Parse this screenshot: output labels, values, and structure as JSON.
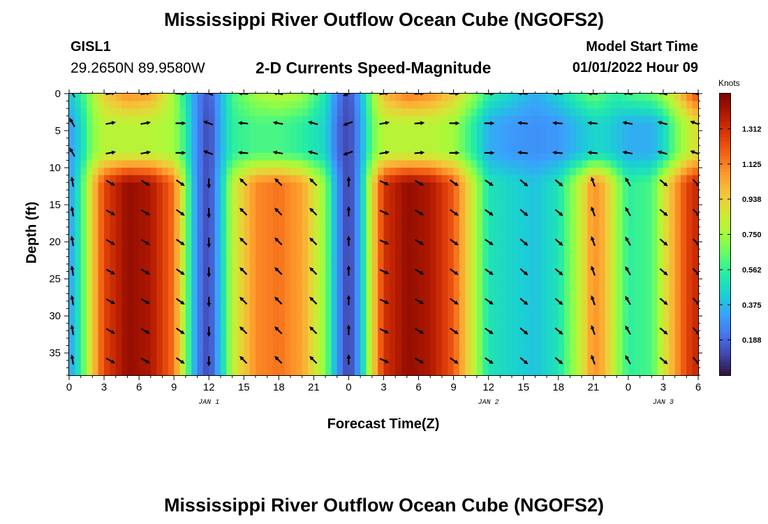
{
  "header": {
    "title": "Mississippi River Outflow Ocean Cube (NGOFS2)",
    "station": "GISL1",
    "coordinates": "29.2650N  89.9580W",
    "subtitle": "2-D Currents Speed-Magnitude",
    "model_start_label": "Model Start Time",
    "model_start_value": "01/01/2022 Hour 09"
  },
  "footer": {
    "title": "Mississippi River Outflow Ocean Cube (NGOFS2)"
  },
  "chart_data": {
    "type": "heatmap",
    "xlabel": "Forecast Time(Z)",
    "ylabel": "Depth (ft)",
    "x_range": [
      0,
      54
    ],
    "y_range": [
      0,
      38
    ],
    "y_inverted": true,
    "x_ticks": [
      0,
      3,
      6,
      9,
      12,
      15,
      18,
      21,
      24,
      27,
      30,
      33,
      36,
      39,
      42,
      45,
      48,
      51,
      54
    ],
    "x_tick_labels": [
      "0",
      "3",
      "6",
      "9",
      "12",
      "15",
      "18",
      "21",
      "0",
      "3",
      "6",
      "9",
      "12",
      "15",
      "18",
      "21",
      "0",
      "3",
      "6"
    ],
    "y_ticks": [
      0,
      5,
      10,
      15,
      20,
      25,
      30,
      35
    ],
    "y_tick_labels": [
      "0",
      "5",
      "10",
      "15",
      "20",
      "25",
      "30",
      "35"
    ],
    "day_labels": [
      {
        "x": 12,
        "label": "JAN 1"
      },
      {
        "x": 36,
        "label": "JAN 2"
      },
      {
        "x": 51,
        "label": "JAN 3"
      }
    ],
    "colorbar": {
      "units": "Knots",
      "min": 0,
      "max": 1.5,
      "ticks": [
        0.188,
        0.375,
        0.562,
        0.75,
        0.938,
        1.125,
        1.312
      ],
      "tick_labels": [
        "0.188",
        "0.375",
        "0.562",
        "0.750",
        "0.938",
        "1.125",
        "1.312"
      ],
      "colormap": [
        "#30123b",
        "#4145ab",
        "#4675ed",
        "#39a2fc",
        "#1bcfd4",
        "#24eca6",
        "#61fc6c",
        "#a4fc3b",
        "#d1e834",
        "#f3c63a",
        "#fe9b2d",
        "#f36315",
        "#d93806",
        "#b11901",
        "#7a0403"
      ]
    },
    "speed_by_time": [
      {
        "t": 0,
        "near_surface": 0.4,
        "surface_layer": 0.3,
        "deep": 0.3
      },
      {
        "t": 1,
        "near_surface": 0.55,
        "surface_layer": 0.45,
        "deep": 0.55
      },
      {
        "t": 2,
        "near_surface": 0.75,
        "surface_layer": 0.7,
        "deep": 0.95
      },
      {
        "t": 3,
        "near_surface": 0.95,
        "surface_layer": 0.8,
        "deep": 1.25
      },
      {
        "t": 5,
        "near_surface": 1.1,
        "surface_layer": 0.8,
        "deep": 1.45
      },
      {
        "t": 7,
        "near_surface": 1.05,
        "surface_layer": 0.8,
        "deep": 1.4
      },
      {
        "t": 9,
        "near_surface": 0.75,
        "surface_layer": 0.75,
        "deep": 1.15
      },
      {
        "t": 10,
        "near_surface": 0.5,
        "surface_layer": 0.55,
        "deep": 0.7
      },
      {
        "t": 11,
        "near_surface": 0.25,
        "surface_layer": 0.25,
        "deep": 0.25
      },
      {
        "t": 12,
        "near_surface": 0.15,
        "surface_layer": 0.1,
        "deep": 0.1
      },
      {
        "t": 13,
        "near_surface": 0.35,
        "surface_layer": 0.35,
        "deep": 0.4
      },
      {
        "t": 14,
        "near_surface": 0.6,
        "surface_layer": 0.55,
        "deep": 0.8
      },
      {
        "t": 16,
        "near_surface": 0.75,
        "surface_layer": 0.6,
        "deep": 1.1
      },
      {
        "t": 18,
        "near_surface": 0.8,
        "surface_layer": 0.6,
        "deep": 1.15
      },
      {
        "t": 20,
        "near_surface": 0.75,
        "surface_layer": 0.55,
        "deep": 1.05
      },
      {
        "t": 22,
        "near_surface": 0.5,
        "surface_layer": 0.45,
        "deep": 0.7
      },
      {
        "t": 23,
        "near_surface": 0.25,
        "surface_layer": 0.2,
        "deep": 0.3
      },
      {
        "t": 24,
        "near_surface": 0.12,
        "surface_layer": 0.1,
        "deep": 0.08
      },
      {
        "t": 25,
        "near_surface": 0.35,
        "surface_layer": 0.3,
        "deep": 0.35
      },
      {
        "t": 26,
        "near_surface": 0.7,
        "surface_layer": 0.65,
        "deep": 0.9
      },
      {
        "t": 27,
        "near_surface": 1.0,
        "surface_layer": 0.8,
        "deep": 1.3
      },
      {
        "t": 29,
        "near_surface": 1.15,
        "surface_layer": 0.8,
        "deep": 1.45
      },
      {
        "t": 31,
        "near_surface": 1.1,
        "surface_layer": 0.8,
        "deep": 1.4
      },
      {
        "t": 33,
        "near_surface": 0.95,
        "surface_layer": 0.75,
        "deep": 1.2
      },
      {
        "t": 35,
        "near_surface": 0.7,
        "surface_layer": 0.5,
        "deep": 0.75
      },
      {
        "t": 36,
        "near_surface": 0.55,
        "surface_layer": 0.35,
        "deep": 0.5
      },
      {
        "t": 38,
        "near_surface": 0.45,
        "surface_layer": 0.3,
        "deep": 0.45
      },
      {
        "t": 40,
        "near_surface": 0.35,
        "surface_layer": 0.28,
        "deep": 0.4
      },
      {
        "t": 42,
        "near_surface": 0.45,
        "surface_layer": 0.3,
        "deep": 0.5
      },
      {
        "t": 44,
        "near_surface": 0.6,
        "surface_layer": 0.4,
        "deep": 0.85
      },
      {
        "t": 45,
        "near_surface": 0.65,
        "surface_layer": 0.45,
        "deep": 1.1
      },
      {
        "t": 46,
        "near_surface": 0.6,
        "surface_layer": 0.45,
        "deep": 1.0
      },
      {
        "t": 47,
        "near_surface": 0.55,
        "surface_layer": 0.4,
        "deep": 0.75
      },
      {
        "t": 48,
        "near_surface": 0.6,
        "surface_layer": 0.35,
        "deep": 0.55
      },
      {
        "t": 50,
        "near_surface": 0.65,
        "surface_layer": 0.35,
        "deep": 0.6
      },
      {
        "t": 51,
        "near_surface": 0.75,
        "surface_layer": 0.45,
        "deep": 0.85
      },
      {
        "t": 52,
        "near_surface": 0.9,
        "surface_layer": 0.65,
        "deep": 1.05
      },
      {
        "t": 53,
        "near_surface": 1.1,
        "surface_layer": 0.8,
        "deep": 1.25
      },
      {
        "t": 54,
        "near_surface": 1.25,
        "surface_layer": 0.9,
        "deep": 1.35
      }
    ],
    "vector_times": [
      0.3,
      3.5,
      6.5,
      9.5,
      12,
      15,
      18,
      21,
      24,
      27,
      30,
      33,
      36,
      39,
      42,
      45,
      48,
      51,
      53.8
    ],
    "vector_depths": [
      0,
      4,
      8,
      12,
      16,
      20,
      24,
      28,
      32,
      36
    ],
    "vector_direction_deg": [
      {
        "t": 0.3,
        "surface": 120,
        "deep": 100
      },
      {
        "t": 3.5,
        "surface": 10,
        "deep": -30
      },
      {
        "t": 6.5,
        "surface": 10,
        "deep": -30
      },
      {
        "t": 9.5,
        "surface": 0,
        "deep": -35
      },
      {
        "t": 12,
        "surface": 160,
        "deep": -90
      },
      {
        "t": 15,
        "surface": 175,
        "deep": 135
      },
      {
        "t": 18,
        "surface": 170,
        "deep": 135
      },
      {
        "t": 21,
        "surface": 165,
        "deep": 135
      },
      {
        "t": 24,
        "surface": 200,
        "deep": 90
      },
      {
        "t": 27,
        "surface": 10,
        "deep": -25
      },
      {
        "t": 30,
        "surface": 5,
        "deep": -30
      },
      {
        "t": 33,
        "surface": 0,
        "deep": -35
      },
      {
        "t": 36,
        "surface": 0,
        "deep": -35
      },
      {
        "t": 39,
        "surface": 175,
        "deep": -40
      },
      {
        "t": 42,
        "surface": 175,
        "deep": -40
      },
      {
        "t": 45,
        "surface": 175,
        "deep": 110
      },
      {
        "t": 48,
        "surface": 170,
        "deep": 120
      },
      {
        "t": 51,
        "surface": 165,
        "deep": -40
      },
      {
        "t": 53.8,
        "surface": 160,
        "deep": -45
      }
    ]
  }
}
